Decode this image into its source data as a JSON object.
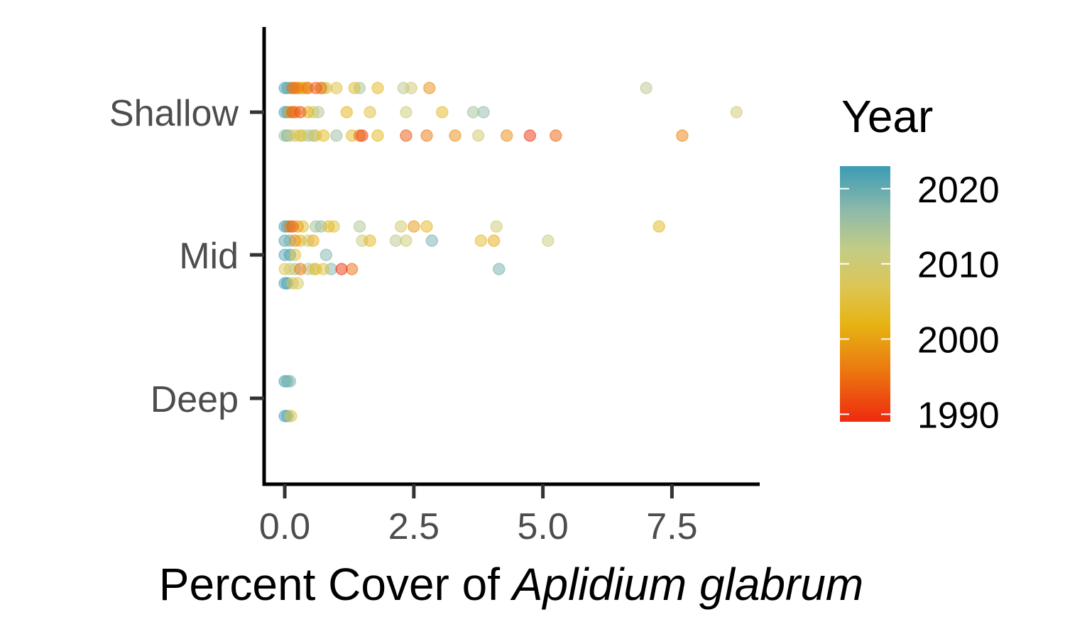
{
  "chart_data": {
    "type": "scatter",
    "title": "",
    "xlabel_prefix": "Percent Cover of ",
    "xlabel_species": "Aplidium glabrum",
    "ylabel": "",
    "xlim": [
      -0.4,
      9.2
    ],
    "x_ticks": [
      {
        "value": 0.0,
        "label": "0.0"
      },
      {
        "value": 2.5,
        "label": "2.5"
      },
      {
        "value": 5.0,
        "label": "5.0"
      },
      {
        "value": 7.5,
        "label": "7.5"
      }
    ],
    "y_categories": [
      "Shallow",
      "Mid",
      "Deep"
    ],
    "grid": false,
    "legend": {
      "title": "Year",
      "placement": "right",
      "type": "colorbar",
      "range": [
        1989,
        2023
      ],
      "ticks": [
        1990,
        2000,
        2010,
        2020
      ],
      "colors": {
        "1989": "#ee2a10",
        "1996": "#ec7a10",
        "2002": "#e6b413",
        "2007": "#dcc655",
        "2012": "#c3cc86",
        "2017": "#8fbaa9",
        "2023": "#3a9cb4"
      }
    },
    "point_opacity": 0.5,
    "rows": [
      {
        "category": "Shallow",
        "site": 1,
        "points": [
          [
            0.0,
            2021
          ],
          [
            0.05,
            2022
          ],
          [
            0.1,
            2019
          ],
          [
            0.15,
            1995
          ],
          [
            0.2,
            1996
          ],
          [
            0.25,
            1997
          ],
          [
            0.3,
            2003
          ],
          [
            0.35,
            2004
          ],
          [
            0.4,
            2000
          ],
          [
            0.45,
            1995
          ],
          [
            0.6,
            1993
          ],
          [
            0.7,
            1995
          ],
          [
            0.75,
            2012
          ],
          [
            0.8,
            2006
          ],
          [
            1.0,
            2005
          ],
          [
            1.35,
            2004
          ],
          [
            1.45,
            2015
          ],
          [
            1.8,
            2003
          ],
          [
            2.3,
            2013
          ],
          [
            2.45,
            2010
          ],
          [
            2.8,
            1998
          ],
          [
            7.0,
            2013
          ]
        ]
      },
      {
        "category": "Shallow",
        "site": 2,
        "points": [
          [
            0.0,
            2022
          ],
          [
            0.05,
            2021
          ],
          [
            0.1,
            1999
          ],
          [
            0.15,
            1994
          ],
          [
            0.2,
            1996
          ],
          [
            0.3,
            1992
          ],
          [
            0.45,
            2002
          ],
          [
            0.55,
            2010
          ],
          [
            0.65,
            2014
          ],
          [
            1.2,
            2002
          ],
          [
            1.65,
            2005
          ],
          [
            2.35,
            2010
          ],
          [
            3.05,
            2003
          ],
          [
            3.65,
            2015
          ],
          [
            3.85,
            2017
          ],
          [
            8.75,
            2010
          ]
        ]
      },
      {
        "category": "Shallow",
        "site": 3,
        "points": [
          [
            0.0,
            2016
          ],
          [
            0.05,
            2022
          ],
          [
            0.1,
            2011
          ],
          [
            0.2,
            2009
          ],
          [
            0.3,
            2004
          ],
          [
            0.35,
            2012
          ],
          [
            0.45,
            2014
          ],
          [
            0.55,
            2017
          ],
          [
            0.6,
            2006
          ],
          [
            0.75,
            2003
          ],
          [
            1.0,
            2016
          ],
          [
            1.3,
            2004
          ],
          [
            1.45,
            1995
          ],
          [
            1.5,
            1992
          ],
          [
            1.8,
            2003
          ],
          [
            2.35,
            1993
          ],
          [
            2.75,
            1996
          ],
          [
            3.3,
            1998
          ],
          [
            3.75,
            2009
          ],
          [
            4.3,
            1998
          ],
          [
            4.75,
            1990
          ],
          [
            5.25,
            1994
          ],
          [
            7.7,
            1997
          ]
        ]
      },
      {
        "category": "Mid",
        "site": 1,
        "points": [
          [
            0.0,
            2022
          ],
          [
            0.05,
            2021
          ],
          [
            0.1,
            1996
          ],
          [
            0.15,
            1994
          ],
          [
            0.25,
            2000
          ],
          [
            0.35,
            2004
          ],
          [
            0.6,
            2015
          ],
          [
            0.7,
            2017
          ],
          [
            0.85,
            2003
          ],
          [
            0.95,
            2006
          ],
          [
            1.45,
            2014
          ],
          [
            2.25,
            2009
          ],
          [
            2.5,
            1999
          ],
          [
            2.75,
            2003
          ],
          [
            4.1,
            2010
          ],
          [
            7.25,
            2003
          ]
        ]
      },
      {
        "category": "Mid",
        "site": 2,
        "points": [
          [
            0.0,
            2021
          ],
          [
            0.1,
            2019
          ],
          [
            0.2,
            1998
          ],
          [
            0.3,
            2003
          ],
          [
            0.45,
            2011
          ],
          [
            0.55,
            2001
          ],
          [
            1.5,
            2011
          ],
          [
            1.65,
            2003
          ],
          [
            2.15,
            2013
          ],
          [
            2.35,
            2010
          ],
          [
            2.85,
            2019
          ],
          [
            3.8,
            2004
          ],
          [
            4.05,
            2001
          ],
          [
            5.1,
            2011
          ]
        ]
      },
      {
        "category": "Mid",
        "site": 3,
        "points": [
          [
            0.0,
            2021
          ],
          [
            0.1,
            2023
          ],
          [
            0.2,
            2005
          ],
          [
            0.8,
            2018
          ]
        ]
      },
      {
        "category": "Mid",
        "site": 4,
        "points": [
          [
            0.0,
            2007
          ],
          [
            0.1,
            2011
          ],
          [
            0.2,
            2014
          ],
          [
            0.3,
            1996
          ],
          [
            0.45,
            2013
          ],
          [
            0.55,
            2012
          ],
          [
            0.6,
            2003
          ],
          [
            0.75,
            2006
          ],
          [
            0.9,
            2018
          ],
          [
            1.1,
            1990
          ],
          [
            1.3,
            1995
          ],
          [
            4.15,
            2019
          ]
        ]
      },
      {
        "category": "Mid",
        "site": 5,
        "points": [
          [
            0.0,
            2022
          ],
          [
            0.05,
            2023
          ],
          [
            0.15,
            2006
          ],
          [
            0.25,
            2009
          ]
        ]
      },
      {
        "category": "Deep",
        "site": 1,
        "points": [
          [
            0.0,
            2022
          ],
          [
            0.05,
            2020
          ],
          [
            0.1,
            2018
          ]
        ]
      },
      {
        "category": "Deep",
        "site": 2,
        "points": [
          [
            0.0,
            2022
          ],
          [
            0.05,
            2021
          ],
          [
            0.12,
            2005
          ]
        ]
      }
    ]
  }
}
